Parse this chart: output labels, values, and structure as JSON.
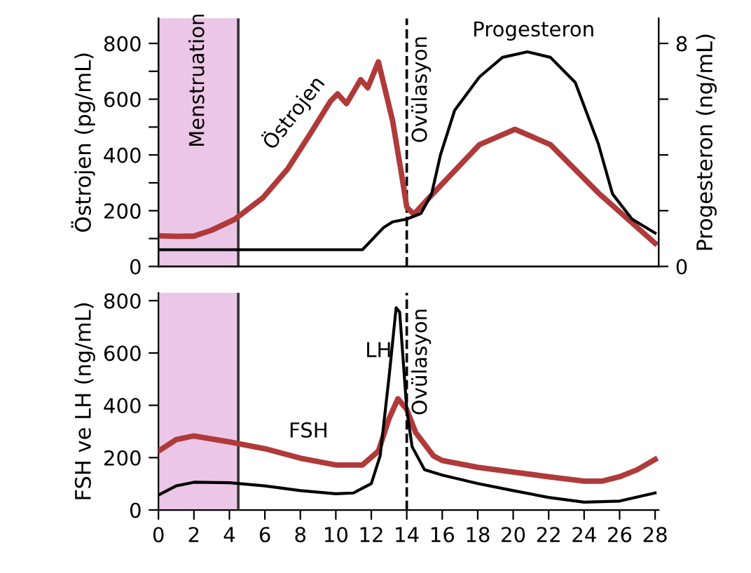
{
  "chart_data": [
    {
      "type": "line",
      "ylabel": "Östrojen (pg/mL)",
      "y2label": "Progesteron (ng/mL)",
      "xlim": [
        0,
        28.2
      ],
      "ylim": [
        0,
        890
      ],
      "y2lim": [
        0,
        8.9
      ],
      "tick_labels": "y",
      "grid": false,
      "legend": false,
      "marker": "none",
      "line_style": "solid",
      "yticks": [
        0,
        {
          "value": 100,
          "label": null
        },
        200,
        {
          "value": 300,
          "label": null
        },
        400,
        {
          "value": 500,
          "label": null
        },
        600,
        {
          "value": 700,
          "label": null
        },
        800
      ],
      "y2ticks": [
        0,
        {
          "value": 2,
          "label": null
        },
        {
          "value": 4,
          "label": null
        },
        {
          "value": 6,
          "label": null
        },
        8
      ],
      "series": [
        {
          "name": "Östrojen",
          "color": "#b03a3a",
          "x": [
            0,
            1,
            2,
            3,
            4.3,
            5.9,
            7.3,
            8.6,
            9.7,
            10.1,
            10.6,
            11.4,
            11.8,
            12.4,
            13.2,
            13.7,
            14.0,
            14.4,
            15.4,
            18.1,
            20.1,
            22.1,
            24.8,
            28
          ],
          "values": [
            110,
            108,
            109,
            130,
            169,
            247,
            351,
            480,
            593,
            619,
            584,
            670,
            641,
            734,
            523,
            333,
            213,
            187,
            256,
            437,
            492,
            437,
            264,
            83
          ]
        },
        {
          "name": "Progesteron",
          "color": "#000000",
          "axis": "y2",
          "x": [
            0,
            11.5,
            12.7,
            13.2,
            14.0,
            14.8,
            15.4,
            15.9,
            16.7,
            18.1,
            19.4,
            20.8,
            22.1,
            23.5,
            24.8,
            25.6,
            26.7,
            28
          ],
          "values": [
            0.6,
            0.6,
            1.4,
            1.6,
            1.7,
            1.9,
            2.6,
            4.0,
            5.6,
            6.8,
            7.5,
            7.7,
            7.5,
            6.6,
            4.4,
            2.6,
            1.7,
            1.2
          ]
        }
      ],
      "bands": [
        {
          "axis": "x",
          "from": 0,
          "to": 4.5,
          "label": "Menstruation",
          "color": "#ecc6e6"
        }
      ],
      "ref_lines": [
        {
          "axis": "x",
          "value": 4.5,
          "line_style": "solid",
          "color": "#333333"
        },
        {
          "axis": "x",
          "value": 14,
          "label": "Ovülasyon",
          "line_style": "dashed",
          "color": "#000000"
        }
      ]
    },
    {
      "type": "line",
      "ylabel": "FSH ve LH (ng/mL)",
      "xlim": [
        0,
        28.2
      ],
      "ylim": [
        0,
        830
      ],
      "grid": false,
      "legend": false,
      "marker": "none",
      "line_style": "solid",
      "xticks": [
        0,
        2,
        4,
        6,
        8,
        10,
        12,
        14,
        16,
        18,
        20,
        22,
        24,
        26,
        28
      ],
      "yticks": [
        0,
        200,
        400,
        600,
        800
      ],
      "series": [
        {
          "name": "FSH",
          "color": "#b03a3a",
          "x": [
            0,
            1,
            2,
            4,
            6,
            8,
            10,
            11.5,
            12.4,
            13,
            13.5,
            14,
            14.5,
            15.5,
            16,
            18,
            20,
            22,
            24,
            25,
            26,
            27,
            28
          ],
          "values": [
            225,
            269,
            283,
            260,
            234,
            198,
            172,
            172,
            225,
            349,
            425,
            384,
            296,
            207,
            189,
            163,
            145,
            127,
            110,
            110,
            127,
            154,
            193
          ]
        },
        {
          "name": "LH",
          "color": "#000000",
          "x": [
            0,
            1,
            2,
            4,
            6,
            8,
            10,
            11,
            12,
            12.5,
            13,
            13.4,
            13.6,
            14,
            14.3,
            15,
            16,
            18,
            20,
            22,
            24,
            26,
            28
          ],
          "values": [
            57,
            92,
            106,
            104,
            92,
            74,
            62,
            65,
            101,
            207,
            508,
            773,
            756,
            384,
            242,
            154,
            133,
            101,
            74,
            48,
            30,
            34,
            65
          ]
        }
      ],
      "bands": [
        {
          "axis": "x",
          "from": 0,
          "to": 4.5,
          "color": "#ecc6e6"
        }
      ],
      "ref_lines": [
        {
          "axis": "x",
          "value": 4.5,
          "line_style": "solid",
          "color": "#333333"
        },
        {
          "axis": "x",
          "value": 14,
          "label": "Ovülasyon",
          "line_style": "dashed",
          "color": "#000000"
        }
      ]
    }
  ]
}
